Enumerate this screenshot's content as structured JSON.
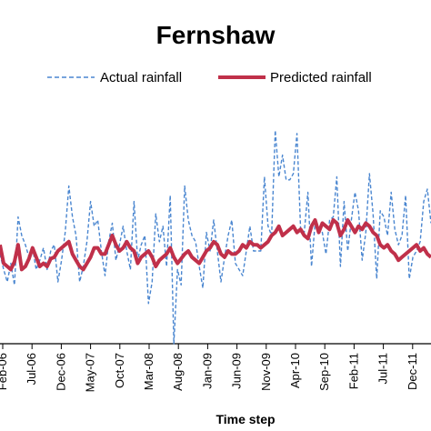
{
  "chart_data": {
    "type": "line",
    "title": "Fernshaw",
    "xlabel": "Time step",
    "ylabel": "",
    "x_tick_labels": [
      "Feb-06",
      "Jul-06",
      "Dec-06",
      "May-07",
      "Oct-07",
      "Mar-08",
      "Aug-08",
      "Jan-09",
      "Jun-09",
      "Nov-09",
      "Apr-10",
      "Sep-10",
      "Feb-11",
      "Jul-11",
      "Dec-11"
    ],
    "legend_position": "top",
    "grid": false,
    "series": [
      {
        "name": "Actual rainfall",
        "style": "dashed",
        "color": "#4a86d0",
        "values": [
          58,
          48,
          40,
          52,
          38,
          82,
          70,
          64,
          56,
          62,
          48,
          54,
          62,
          48,
          60,
          64,
          40,
          54,
          72,
          102,
          82,
          70,
          40,
          50,
          66,
          92,
          76,
          80,
          60,
          44,
          66,
          78,
          54,
          64,
          76,
          60,
          48,
          92,
          54,
          64,
          70,
          26,
          40,
          84,
          66,
          76,
          50,
          96,
          0,
          48,
          38,
          102,
          80,
          70,
          66,
          50,
          36,
          72,
          60,
          80,
          60,
          40,
          56,
          70,
          80,
          52,
          48,
          44,
          60,
          76,
          60,
          60,
          60,
          108,
          76,
          70,
          138,
          108,
          122,
          106,
          106,
          110,
          136,
          74,
          72,
          98,
          50,
          78,
          76,
          72,
          58,
          80,
          82,
          108,
          50,
          92,
          60,
          80,
          98,
          86,
          54,
          72,
          110,
          84,
          42,
          86,
          82,
          70,
          98,
          74,
          64,
          70,
          96,
          42,
          56,
          60,
          66,
          92,
          100,
          78
        ]
      },
      {
        "name": "Predicted rainfall",
        "style": "solid",
        "color": "#c0304a",
        "values": [
          64,
          52,
          50,
          48,
          53,
          64,
          48,
          50,
          55,
          62,
          56,
          50,
          52,
          50,
          55,
          56,
          60,
          62,
          64,
          66,
          58,
          54,
          50,
          48,
          52,
          56,
          62,
          62,
          58,
          58,
          64,
          70,
          64,
          60,
          62,
          66,
          62,
          60,
          52,
          56,
          58,
          60,
          56,
          50,
          54,
          56,
          58,
          62,
          56,
          52,
          55,
          58,
          60,
          56,
          54,
          52,
          56,
          60,
          62,
          66,
          64,
          58,
          56,
          60,
          58,
          58,
          60,
          64,
          62,
          66,
          64,
          64,
          62,
          64,
          66,
          70,
          72,
          76,
          70,
          72,
          74,
          76,
          72,
          74,
          70,
          68,
          76,
          80,
          72,
          78,
          76,
          74,
          80,
          78,
          70,
          74,
          80,
          76,
          72,
          76,
          74,
          78,
          76,
          72,
          70,
          64,
          62,
          64,
          60,
          58,
          54,
          56,
          58,
          60,
          62,
          64,
          60,
          62,
          58,
          56
        ]
      }
    ]
  }
}
